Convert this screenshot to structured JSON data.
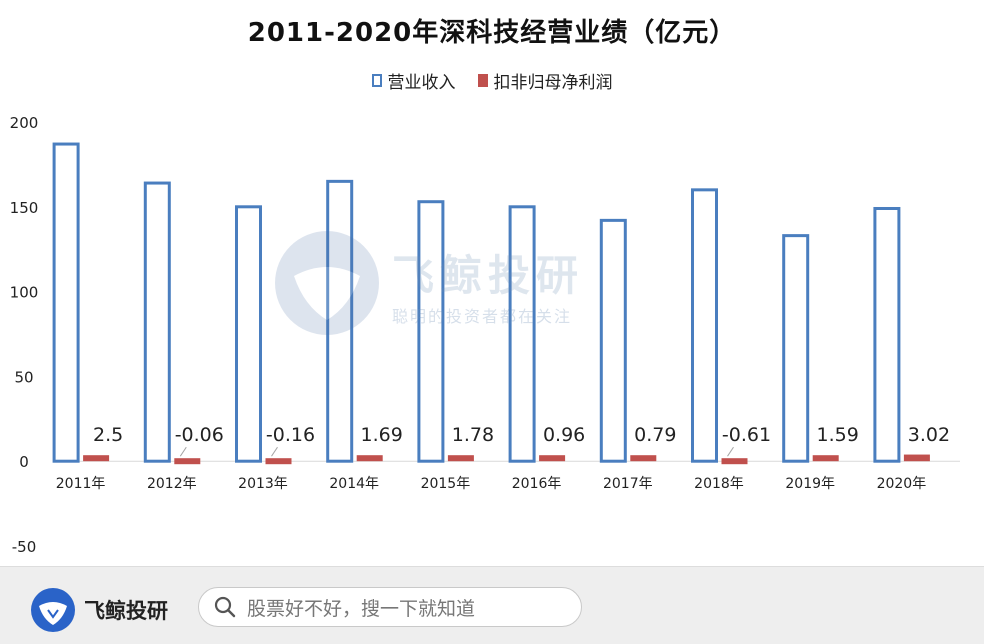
{
  "watermark": {
    "name": "飞鲸投研",
    "slogan": "聪明的投资者都在关注"
  },
  "footer": {
    "brand": "飞鲸投研",
    "search_placeholder": "股票好不好，搜一下就知道"
  },
  "colors": {
    "revenue": "#4a7ebf",
    "profit": "#c0504d"
  },
  "chart_data": {
    "type": "bar",
    "title": "2011-2020年深科技经营业绩（亿元）",
    "xlabel": "",
    "ylabel": "",
    "categories": [
      "2011年",
      "2012年",
      "2013年",
      "2014年",
      "2015年",
      "2016年",
      "2017年",
      "2018年",
      "2019年",
      "2020年"
    ],
    "series": [
      {
        "name": "营业收入",
        "values": [
          187,
          164,
          150,
          165,
          153,
          150,
          142,
          160,
          133,
          149
        ]
      },
      {
        "name": "扣非归母净利润",
        "values": [
          2.5,
          -0.06,
          -0.16,
          1.69,
          1.78,
          0.96,
          0.79,
          -0.61,
          1.59,
          3.02
        ]
      }
    ],
    "data_labels": [
      "2.5",
      "-0.06",
      "-0.16",
      "1.69",
      "1.78",
      "0.96",
      "0.79",
      "-0.61",
      "1.59",
      "3.02"
    ],
    "ylim": [
      -50,
      200
    ],
    "yticks": [
      "200",
      "150",
      "100",
      "50",
      "0",
      "-50"
    ],
    "grid": false,
    "legend": "top-center"
  }
}
